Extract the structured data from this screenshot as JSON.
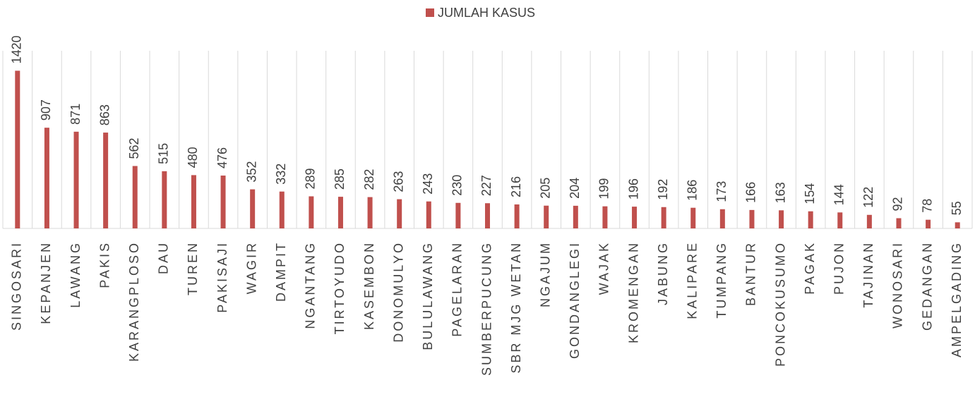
{
  "chart_data": {
    "type": "bar",
    "categories": [
      "SINGOSARI",
      "KEPANJEN",
      "LAWANG",
      "PAKIS",
      "KARANGPLOSO",
      "DAU",
      "TUREN",
      "PAKISAJI",
      "WAGIR",
      "DAMPIT",
      "NGANTANG",
      "TIRTOYUDO",
      "KASEMBON",
      "DONOMULYO",
      "BULULAWANG",
      "PAGELARAN",
      "SUMBERPUCUNG",
      "SBR MJG WETAN",
      "NGAJUM",
      "GONDANGLEGI",
      "WAJAK",
      "KROMENGAN",
      "JABUNG",
      "KALIPARE",
      "TUMPANG",
      "BANTUR",
      "PONCOKUSUMO",
      "PAGAK",
      "PUJON",
      "TAJINAN",
      "WONOSARI",
      "GEDANGAN",
      "AMPELGADING"
    ],
    "series": [
      {
        "name": "JUMLAH KASUS",
        "color": "#c0504d",
        "values": [
          1420,
          907,
          871,
          863,
          562,
          515,
          480,
          476,
          352,
          332,
          289,
          285,
          282,
          263,
          243,
          230,
          227,
          216,
          205,
          204,
          199,
          196,
          192,
          186,
          173,
          166,
          163,
          154,
          144,
          122,
          92,
          78,
          55
        ]
      }
    ],
    "ylim": [
      0,
      1600
    ]
  }
}
